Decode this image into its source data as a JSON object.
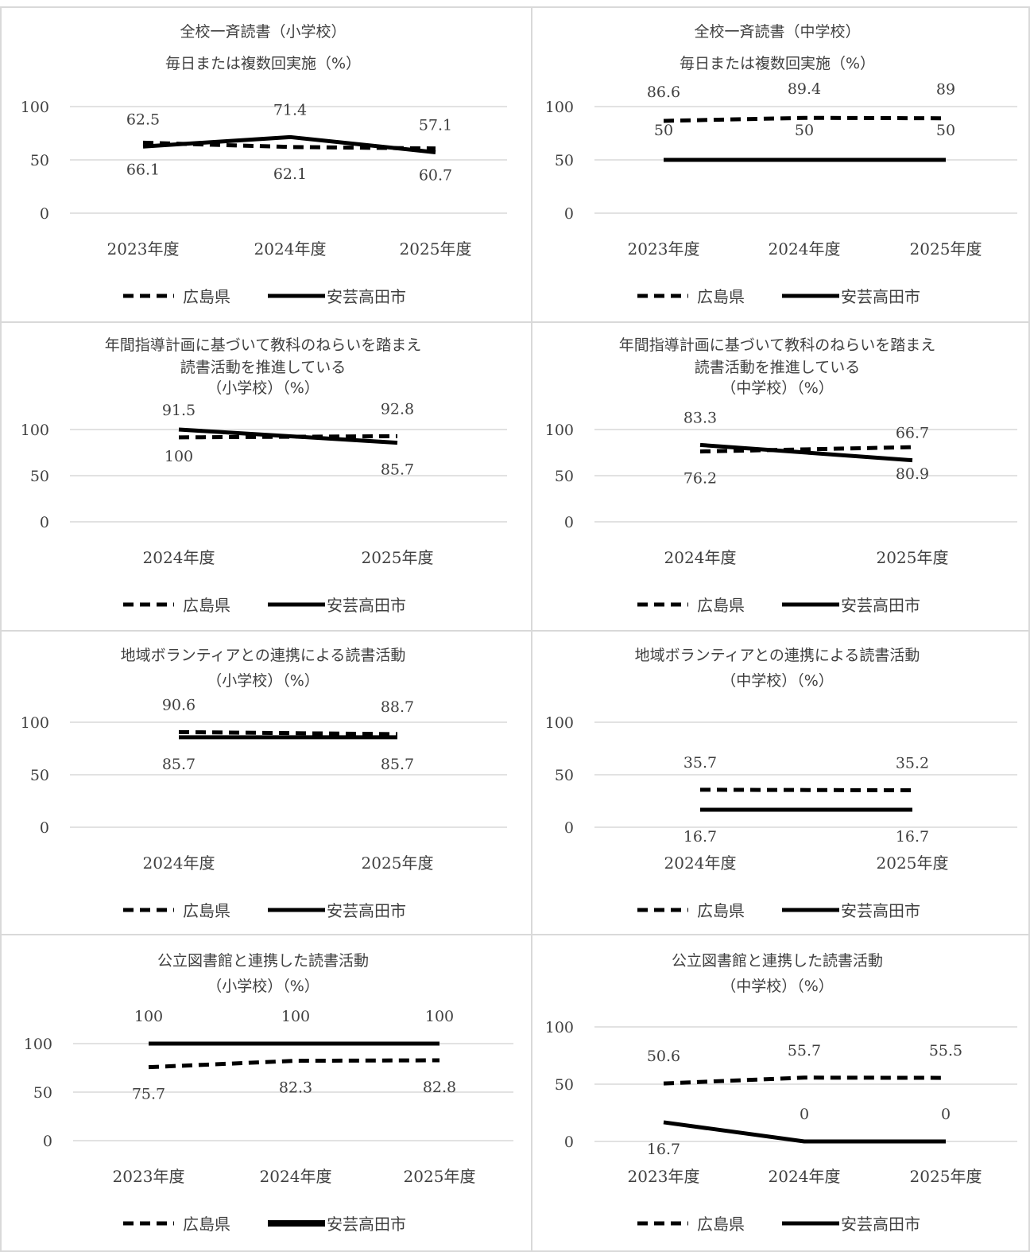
{
  "chart_data": [
    {
      "type": "line",
      "title": [
        "全校一斉読書（小学校）",
        "毎日または複数回実施（%）"
      ],
      "categories": [
        "2023年度",
        "2024年度",
        "2025年度"
      ],
      "yticks": [
        "100",
        "50",
        "0"
      ],
      "ylim": [
        0,
        100
      ],
      "legend_position": "bottom",
      "series": [
        {
          "name": "広島県",
          "style": "dashed",
          "values": [
            66.1,
            62.1,
            60.7
          ],
          "labels": [
            "66.1",
            "62.1",
            "60.7"
          ],
          "label_pos": [
            "below",
            "below",
            "below"
          ]
        },
        {
          "name": "安芸高田市",
          "style": "solid",
          "values": [
            62.5,
            71.4,
            57.1
          ],
          "labels": [
            "62.5",
            "71.4",
            "57.1"
          ],
          "label_pos": [
            "above",
            "above",
            "above"
          ]
        }
      ]
    },
    {
      "type": "line",
      "title": [
        "全校一斉読書（中学校）",
        "毎日または複数回実施（%）"
      ],
      "categories": [
        "2023年度",
        "2024年度",
        "2025年度"
      ],
      "yticks": [
        "100",
        "50",
        "0"
      ],
      "ylim": [
        0,
        100
      ],
      "legend_position": "bottom",
      "series": [
        {
          "name": "広島県",
          "style": "dashed",
          "values": [
            86.6,
            89.4,
            89
          ],
          "labels": [
            "86.6",
            "89.4",
            "89"
          ],
          "label_pos": [
            "above",
            "above",
            "above"
          ]
        },
        {
          "name": "安芸高田市",
          "style": "solid",
          "values": [
            50,
            50,
            50
          ],
          "labels": [
            "50",
            "50",
            "50"
          ],
          "label_pos": [
            "highabove",
            "highabove",
            "highabove"
          ]
        }
      ]
    },
    {
      "type": "line",
      "title": [
        "年間指導計画に基づいて教科のねらいを踏まえ",
        "読書活動を推進している",
        "（小学校）（%）"
      ],
      "categories": [
        "2024年度",
        "2025年度"
      ],
      "yticks": [
        "100",
        "50",
        "0"
      ],
      "ylim": [
        0,
        100
      ],
      "legend_position": "bottom",
      "series": [
        {
          "name": "広島県",
          "style": "dashed",
          "values": [
            91.5,
            92.8
          ],
          "labels": [
            "91.5",
            "92.8"
          ],
          "label_pos": [
            "above",
            "above"
          ]
        },
        {
          "name": "安芸高田市",
          "style": "solid",
          "values": [
            100,
            85.7
          ],
          "labels": [
            "100",
            "85.7"
          ],
          "label_pos": [
            "below",
            "below"
          ]
        }
      ]
    },
    {
      "type": "line",
      "title": [
        "年間指導計画に基づいて教科のねらいを踏まえ",
        "読書活動を推進している",
        "（中学校）（%）"
      ],
      "categories": [
        "2024年度",
        "2025年度"
      ],
      "yticks": [
        "100",
        "50",
        "0"
      ],
      "ylim": [
        0,
        100
      ],
      "legend_position": "bottom",
      "series": [
        {
          "name": "広島県",
          "style": "dashed",
          "values": [
            76.2,
            80.9
          ],
          "labels": [
            "76.2",
            "80.9"
          ],
          "label_pos": [
            "below",
            "below"
          ]
        },
        {
          "name": "安芸高田市",
          "style": "solid",
          "values": [
            83.3,
            66.7
          ],
          "labels": [
            "83.3",
            "66.7"
          ],
          "label_pos": [
            "above",
            "above"
          ]
        }
      ]
    },
    {
      "type": "line",
      "title": [
        "地域ボランティアとの連携による読書活動",
        "（小学校）（%）"
      ],
      "categories": [
        "2024年度",
        "2025年度"
      ],
      "yticks": [
        "100",
        "50",
        "0"
      ],
      "ylim": [
        0,
        100
      ],
      "legend_position": "bottom",
      "series": [
        {
          "name": "広島県",
          "style": "dashed",
          "values": [
            90.6,
            88.7
          ],
          "labels": [
            "90.6",
            "88.7"
          ],
          "label_pos": [
            "above",
            "above"
          ]
        },
        {
          "name": "安芸高田市",
          "style": "solid",
          "values": [
            85.7,
            85.7
          ],
          "labels": [
            "85.7",
            "85.7"
          ],
          "label_pos": [
            "below",
            "below"
          ]
        }
      ]
    },
    {
      "type": "line",
      "title": [
        "地域ボランティアとの連携による読書活動",
        "（中学校）（%）"
      ],
      "categories": [
        "2024年度",
        "2025年度"
      ],
      "yticks": [
        "100",
        "50",
        "0"
      ],
      "ylim": [
        0,
        100
      ],
      "legend_position": "bottom",
      "series": [
        {
          "name": "広島県",
          "style": "dashed",
          "values": [
            35.7,
            35.2
          ],
          "labels": [
            "35.7",
            "35.2"
          ],
          "label_pos": [
            "above",
            "above"
          ]
        },
        {
          "name": "安芸高田市",
          "style": "solid",
          "values": [
            16.7,
            16.7
          ],
          "labels": [
            "16.7",
            "16.7"
          ],
          "label_pos": [
            "below",
            "below"
          ]
        }
      ]
    },
    {
      "type": "line",
      "title": [
        "公立図書館と連携した読書活動",
        "（小学校）（%）"
      ],
      "categories": [
        "2023年度",
        "2024年度",
        "2025年度"
      ],
      "yticks": [
        "100",
        "50",
        "0"
      ],
      "ylim": [
        0,
        100
      ],
      "legend_position": "bottom",
      "series": [
        {
          "name": "広島県",
          "style": "dashed",
          "values": [
            75.7,
            82.3,
            82.8
          ],
          "labels": [
            "75.7",
            "82.3",
            "82.8"
          ],
          "label_pos": [
            "below",
            "below",
            "below"
          ]
        },
        {
          "name": "安芸高田市",
          "style": "solid",
          "values": [
            100,
            100,
            100
          ],
          "labels": [
            "100",
            "100",
            "100"
          ],
          "label_pos": [
            "above",
            "above",
            "above"
          ]
        }
      ]
    },
    {
      "type": "line",
      "title": [
        "公立図書館と連携した読書活動",
        "（中学校）（%）"
      ],
      "categories": [
        "2023年度",
        "2024年度",
        "2025年度"
      ],
      "yticks": [
        "100",
        "50",
        "0"
      ],
      "ylim": [
        0,
        100
      ],
      "legend_position": "bottom",
      "series": [
        {
          "name": "広島県",
          "style": "dashed",
          "values": [
            50.6,
            55.7,
            55.5
          ],
          "labels": [
            "50.6",
            "55.7",
            "55.5"
          ],
          "label_pos": [
            "above",
            "above",
            "above"
          ]
        },
        {
          "name": "安芸高田市",
          "style": "solid",
          "values": [
            16.7,
            0,
            0
          ],
          "labels": [
            "16.7",
            "0",
            "0"
          ],
          "label_pos": [
            "below",
            "above",
            "above"
          ]
        }
      ]
    }
  ],
  "colors": {
    "line": "#000000",
    "text": "#404040",
    "grid": "#d9d9d9",
    "border": "#d9d9d9"
  }
}
